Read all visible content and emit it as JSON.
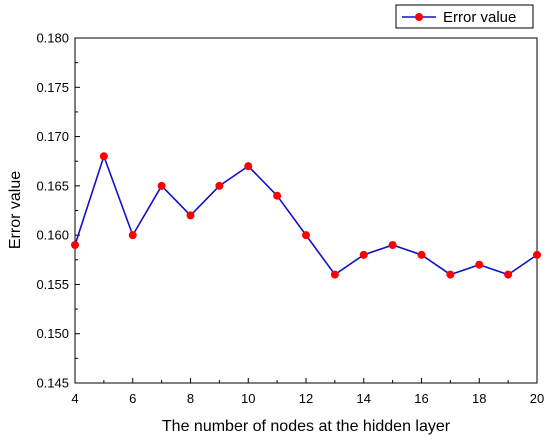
{
  "chart_data": {
    "type": "line",
    "title": "",
    "xlabel": "The number of nodes at the hidden layer",
    "ylabel": "Error value",
    "xlim": [
      4,
      20
    ],
    "ylim": [
      0.145,
      0.18
    ],
    "x_ticks": [
      4,
      6,
      8,
      10,
      12,
      14,
      16,
      18,
      20
    ],
    "y_ticks": [
      "0.145",
      "0.150",
      "0.155",
      "0.160",
      "0.165",
      "0.170",
      "0.175",
      "0.180"
    ],
    "grid": false,
    "legend_position": "top-right",
    "series": [
      {
        "name": "Error value",
        "line_color": "#1010c8",
        "marker_color": "#ff0000",
        "x": [
          4,
          5,
          6,
          7,
          8,
          9,
          10,
          11,
          12,
          13,
          14,
          15,
          16,
          17,
          18,
          19,
          20
        ],
        "y": [
          0.159,
          0.168,
          0.16,
          0.165,
          0.162,
          0.165,
          0.167,
          0.164,
          0.16,
          0.156,
          0.158,
          0.159,
          0.158,
          0.156,
          0.157,
          0.156,
          0.158
        ]
      }
    ]
  }
}
